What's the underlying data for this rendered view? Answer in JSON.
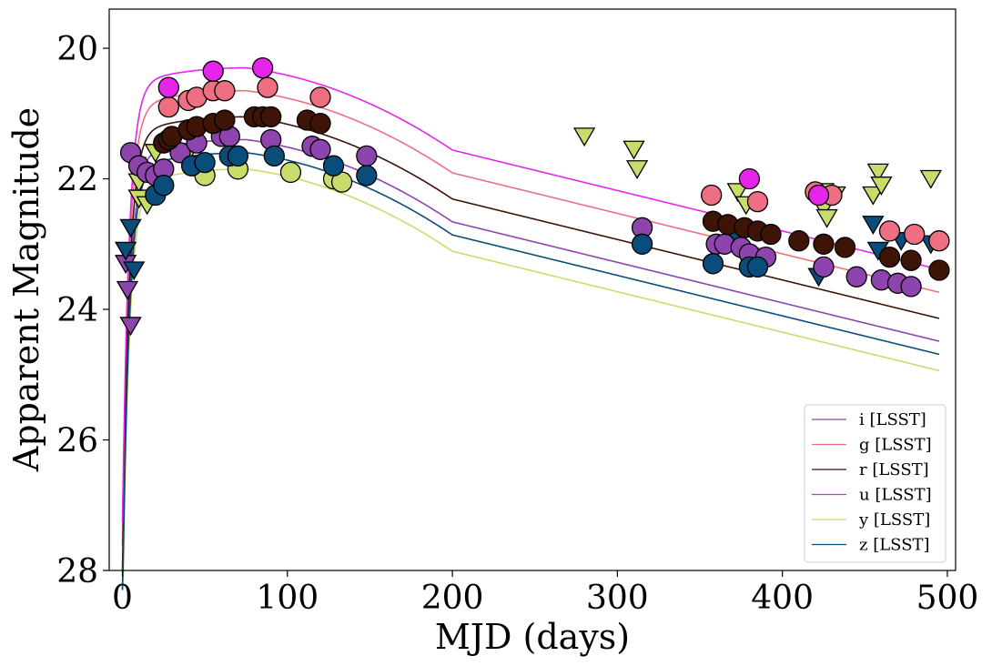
{
  "chart_data": {
    "type": "scatter",
    "title": "",
    "xlabel": "MJD (days)",
    "ylabel": "Apparent Magnitude",
    "xlim": [
      -8,
      505
    ],
    "ylim": [
      28,
      19.4
    ],
    "y_inverted": true,
    "xticks": [
      0,
      100,
      200,
      300,
      400,
      500
    ],
    "yticks": [
      20,
      22,
      24,
      26,
      28
    ],
    "grid": false,
    "legend_position": "bottom-right",
    "series": [
      {
        "name": "i [LSST]",
        "color": "#8e44ad",
        "peak_mag": 21.4,
        "peak_day": 75,
        "decline_early": 0.0065,
        "decline_late": 0.0035,
        "break_day": 200,
        "points": [
          [
            5,
            21.6
          ],
          [
            10,
            21.8
          ],
          [
            15,
            21.9
          ],
          [
            20,
            21.95
          ],
          [
            25,
            21.85
          ],
          [
            35,
            21.6
          ],
          [
            45,
            21.45
          ],
          [
            60,
            21.35
          ],
          [
            65,
            21.35
          ],
          [
            90,
            21.4
          ],
          [
            115,
            21.5
          ],
          [
            120,
            21.55
          ],
          [
            148,
            21.65
          ],
          [
            315,
            22.75
          ],
          [
            360,
            23.0
          ],
          [
            365,
            23.0
          ],
          [
            375,
            23.05
          ],
          [
            380,
            23.15
          ],
          [
            390,
            23.2
          ],
          [
            425,
            23.35
          ],
          [
            445,
            23.5
          ],
          [
            460,
            23.55
          ],
          [
            470,
            23.6
          ],
          [
            478,
            23.65
          ]
        ],
        "limits": [
          [
            2,
            23.3
          ],
          [
            3,
            23.7
          ],
          [
            5,
            24.25
          ]
        ]
      },
      {
        "name": "g [LSST]",
        "color": "#ee6f82",
        "peak_mag": 20.65,
        "peak_day": 75,
        "decline_early": 0.0065,
        "decline_late": 0.0035,
        "break_day": 200,
        "points": [
          [
            28,
            20.9
          ],
          [
            40,
            20.8
          ],
          [
            45,
            20.75
          ],
          [
            55,
            20.65
          ],
          [
            62,
            20.65
          ],
          [
            88,
            20.6
          ],
          [
            120,
            20.75
          ],
          [
            357,
            22.25
          ],
          [
            385,
            22.35
          ],
          [
            420,
            22.2
          ],
          [
            430,
            22.25
          ],
          [
            465,
            22.8
          ],
          [
            480,
            22.85
          ],
          [
            495,
            22.95
          ]
        ],
        "limits": []
      },
      {
        "name": "r [LSST]",
        "color": "#3d1406",
        "peak_mag": 21.05,
        "peak_day": 75,
        "decline_early": 0.0065,
        "decline_late": 0.0035,
        "break_day": 200,
        "points": [
          [
            25,
            21.45
          ],
          [
            28,
            21.4
          ],
          [
            30,
            21.35
          ],
          [
            40,
            21.25
          ],
          [
            45,
            21.2
          ],
          [
            55,
            21.15
          ],
          [
            62,
            21.1
          ],
          [
            80,
            21.05
          ],
          [
            85,
            21.05
          ],
          [
            90,
            21.05
          ],
          [
            112,
            21.1
          ],
          [
            120,
            21.15
          ],
          [
            358,
            22.65
          ],
          [
            367,
            22.7
          ],
          [
            377,
            22.75
          ],
          [
            385,
            22.8
          ],
          [
            393,
            22.85
          ],
          [
            410,
            22.95
          ],
          [
            425,
            23.0
          ],
          [
            438,
            23.05
          ],
          [
            465,
            23.2
          ],
          [
            478,
            23.25
          ],
          [
            495,
            23.4
          ]
        ],
        "limits": []
      },
      {
        "name": "u [LSST]",
        "color": "#e625ea",
        "peak_mag": 20.3,
        "peak_day": 75,
        "decline_early": 0.0065,
        "decline_late": 0.0035,
        "break_day": 200,
        "points": [
          [
            28,
            20.6
          ],
          [
            55,
            20.35
          ],
          [
            85,
            20.3
          ],
          [
            380,
            22.0
          ],
          [
            422,
            22.25
          ]
        ],
        "limits": []
      },
      {
        "name": "y [LSST]",
        "color": "#c8dc6b",
        "peak_mag": 21.85,
        "peak_day": 75,
        "decline_early": 0.0065,
        "decline_late": 0.0035,
        "break_day": 200,
        "points": [
          [
            50,
            21.95
          ],
          [
            70,
            21.85
          ],
          [
            102,
            21.9
          ],
          [
            128,
            22.0
          ],
          [
            133,
            22.05
          ]
        ],
        "limits": [
          [
            8,
            21.8
          ],
          [
            10,
            22.05
          ],
          [
            10,
            22.3
          ],
          [
            12,
            21.9
          ],
          [
            15,
            22.4
          ],
          [
            20,
            21.6
          ],
          [
            40,
            21.6
          ],
          [
            280,
            21.35
          ],
          [
            310,
            21.55
          ],
          [
            312,
            21.85
          ],
          [
            373,
            22.2
          ],
          [
            378,
            22.4
          ],
          [
            425,
            22.2
          ],
          [
            425,
            22.45
          ],
          [
            427,
            22.6
          ],
          [
            432,
            22.25
          ],
          [
            455,
            22.25
          ],
          [
            458,
            21.9
          ],
          [
            460,
            22.1
          ],
          [
            490,
            22.0
          ]
        ]
      },
      {
        "name": "z [LSST]",
        "color": "#0a4d7a",
        "peak_mag": 21.6,
        "peak_day": 75,
        "decline_early": 0.0065,
        "decline_late": 0.0035,
        "break_day": 200,
        "points": [
          [
            20,
            22.25
          ],
          [
            25,
            22.1
          ],
          [
            42,
            21.8
          ],
          [
            50,
            21.75
          ],
          [
            65,
            21.65
          ],
          [
            70,
            21.65
          ],
          [
            92,
            21.65
          ],
          [
            128,
            21.8
          ],
          [
            148,
            21.95
          ],
          [
            315,
            23.0
          ],
          [
            358,
            23.3
          ],
          [
            380,
            23.35
          ],
          [
            385,
            23.35
          ]
        ],
        "limits": [
          [
            2,
            23.1
          ],
          [
            5,
            22.75
          ],
          [
            7,
            23.4
          ],
          [
            372,
            22.95
          ],
          [
            422,
            23.5
          ],
          [
            455,
            22.7
          ],
          [
            458,
            23.1
          ],
          [
            472,
            22.95
          ],
          [
            490,
            23.0
          ]
        ]
      }
    ]
  }
}
